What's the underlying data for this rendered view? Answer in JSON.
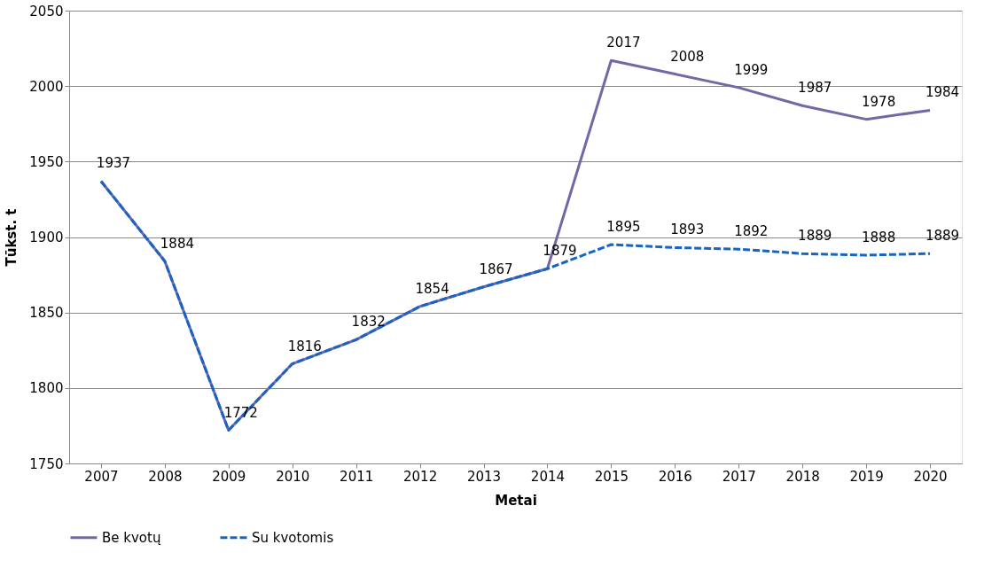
{
  "chart_data": {
    "type": "line",
    "xlabel": "Metai",
    "ylabel": "Tūkst. t",
    "categories": [
      "2007",
      "2008",
      "2009",
      "2010",
      "2011",
      "2012",
      "2013",
      "2014",
      "2015",
      "2016",
      "2017",
      "2018",
      "2019",
      "2020"
    ],
    "series": [
      {
        "name": "Be kvotų",
        "color": "#7467a6",
        "line_style": "solid",
        "values": [
          1937,
          1884,
          1772,
          1816,
          1832,
          1854,
          1867,
          1879,
          2017,
          2008,
          1999,
          1987,
          1978,
          1984
        ],
        "value_labels": [
          "1937",
          "1884",
          "1772",
          "1816",
          "1832",
          "1854",
          "1867",
          "1879",
          "2017",
          "2008",
          "1999",
          "1987",
          "1978",
          "1984"
        ]
      },
      {
        "name": "Su kvotomis",
        "color": "#1565c8",
        "line_style": "dashed",
        "values": [
          1937,
          1884,
          1772,
          1816,
          1832,
          1854,
          1867,
          1879,
          1895,
          1893,
          1892,
          1889,
          1888,
          1889
        ],
        "value_labels": [
          null,
          null,
          null,
          null,
          null,
          null,
          null,
          null,
          "1895",
          "1893",
          "1892",
          "1889",
          "1888",
          "1889"
        ]
      }
    ],
    "ylim": [
      1750,
      2050
    ],
    "yticks": [
      1750,
      1800,
      1850,
      1900,
      1950,
      2000,
      2050
    ],
    "grid": "y",
    "legend": "bottom",
    "marker": "none"
  }
}
